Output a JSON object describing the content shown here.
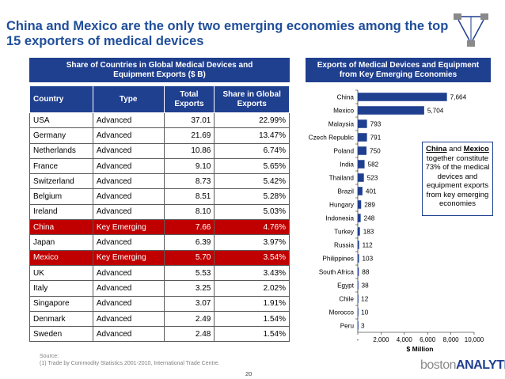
{
  "slide": {
    "title": "China and Mexico are the only two emerging economies among the top 15 exporters of medical devices",
    "page_number": "20",
    "source_label": "Source:",
    "source_note": "(1)    Trade by Commodity Statistics 2001-2010, International Trade Centre.",
    "brand_prefix": "boston",
    "brand_suffix": "ANALYTICS",
    "logo": "network-triangle-logo"
  },
  "left_panel": {
    "header": "Share of Countries in Global Medical Devices and Equipment Exports ($ B)",
    "columns": [
      "Country",
      "Type",
      "Total Exports",
      "Share in Global Exports"
    ],
    "rows": [
      {
        "country": "USA",
        "type": "Advanced",
        "total": "37.01",
        "share": "22.99%",
        "highlight": false
      },
      {
        "country": "Germany",
        "type": "Advanced",
        "total": "21.69",
        "share": "13.47%",
        "highlight": false
      },
      {
        "country": "Netherlands",
        "type": "Advanced",
        "total": "10.86",
        "share": "6.74%",
        "highlight": false
      },
      {
        "country": "France",
        "type": "Advanced",
        "total": "9.10",
        "share": "5.65%",
        "highlight": false
      },
      {
        "country": "Switzerland",
        "type": "Advanced",
        "total": "8.73",
        "share": "5.42%",
        "highlight": false
      },
      {
        "country": "Belgium",
        "type": "Advanced",
        "total": "8.51",
        "share": "5.28%",
        "highlight": false
      },
      {
        "country": "Ireland",
        "type": "Advanced",
        "total": "8.10",
        "share": "5.03%",
        "highlight": false
      },
      {
        "country": "China",
        "type": "Key Emerging",
        "total": "7.66",
        "share": "4.76%",
        "highlight": true
      },
      {
        "country": "Japan",
        "type": "Advanced",
        "total": "6.39",
        "share": "3.97%",
        "highlight": false
      },
      {
        "country": "Mexico",
        "type": "Key Emerging",
        "total": "5.70",
        "share": "3.54%",
        "highlight": true
      },
      {
        "country": "UK",
        "type": "Advanced",
        "total": "5.53",
        "share": "3.43%",
        "highlight": false
      },
      {
        "country": "Italy",
        "type": "Advanced",
        "total": "3.25",
        "share": "2.02%",
        "highlight": false
      },
      {
        "country": "Singapore",
        "type": "Advanced",
        "total": "3.07",
        "share": "1.91%",
        "highlight": false
      },
      {
        "country": "Denmark",
        "type": "Advanced",
        "total": "2.49",
        "share": "1.54%",
        "highlight": false
      },
      {
        "country": "Sweden",
        "type": "Advanced",
        "total": "2.48",
        "share": "1.54%",
        "highlight": false
      }
    ],
    "highlight_color": "#c00000",
    "header_color": "#1f3f8f"
  },
  "right_panel": {
    "header": "Exports of Medical Devices and Equipment from Key Emerging Economies",
    "callout": {
      "bold1": "China",
      "mid": " and ",
      "bold2": "Mexico",
      "rest": " together constitute 73% of the medical devices and equipment exports from key emerging economies"
    }
  },
  "chart_data": {
    "type": "bar",
    "orientation": "horizontal",
    "title": "Exports of Medical Devices and Equipment from Key Emerging Economies",
    "xlabel": "$ Million",
    "ylabel": "",
    "xlim": [
      0,
      10000
    ],
    "xticks": [
      "-",
      "2,000",
      "4,000",
      "6,000",
      "8,000",
      "10,000"
    ],
    "xtick_values": [
      0,
      2000,
      4000,
      6000,
      8000,
      10000
    ],
    "categories": [
      "China",
      "Mexico",
      "Malaysia",
      "Czech Republic",
      "Poland",
      "India",
      "Thailand",
      "Brazil",
      "Hungary",
      "Indonesia",
      "Turkey",
      "Russia",
      "Philippines",
      "South Africa",
      "Egypt",
      "Chile",
      "Morocco",
      "Peru"
    ],
    "values": [
      7664,
      5704,
      793,
      791,
      750,
      582,
      523,
      401,
      289,
      248,
      183,
      112,
      103,
      88,
      38,
      12,
      10,
      3
    ],
    "value_labels": [
      "7,664",
      "5,704",
      "793",
      "791",
      "750",
      "582",
      "523",
      "401",
      "289",
      "248",
      "183",
      "112",
      "103",
      "88",
      "38",
      "12",
      "10",
      "3"
    ],
    "bar_color": "#1f3f8f",
    "grid": false
  }
}
